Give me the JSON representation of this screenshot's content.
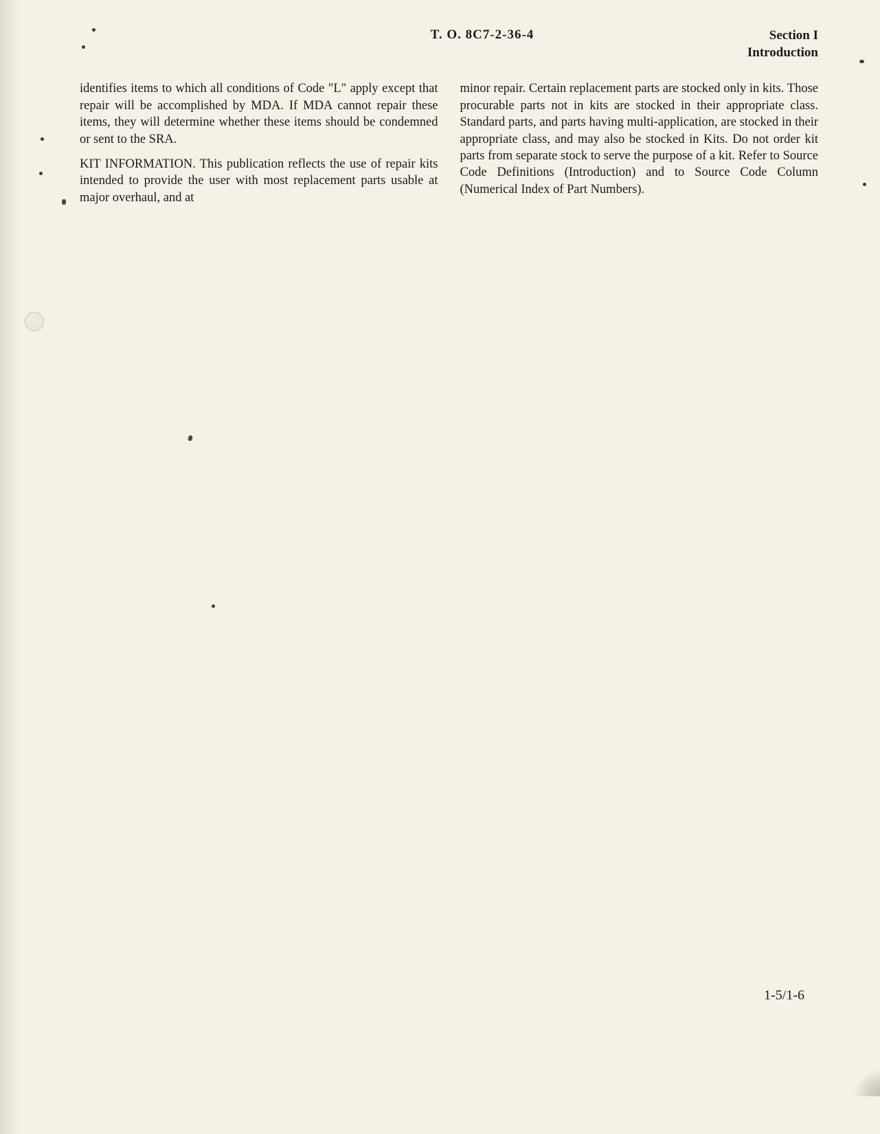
{
  "header": {
    "document_number": "T. O. 8C7-2-36-4",
    "section_label": "Section I",
    "section_name": "Introduction"
  },
  "columns": {
    "left": {
      "para1": "identifies items to which all conditions of Code \"L\" apply except that repair will be accomplished by MDA. If MDA cannot repair these items, they will determine whether these items should be condemned or sent to the SRA.",
      "para2": "KIT INFORMATION. This publication reflects the use of repair kits intended to provide the user with most replacement parts usable at major overhaul, and at"
    },
    "right": {
      "para1": "minor repair. Certain replacement parts are stocked only in kits. Those procurable parts not in kits are stocked in their appropriate class. Standard parts, and parts having multi-application, are stocked in their appropriate class, and may also be stocked in Kits. Do not order kit parts from separate stock to serve the purpose of a kit. Refer to Source Code Definitions (Introduction) and to Source Code Column (Numerical Index of Part Numbers)."
    }
  },
  "page_number": "1-5/1-6"
}
